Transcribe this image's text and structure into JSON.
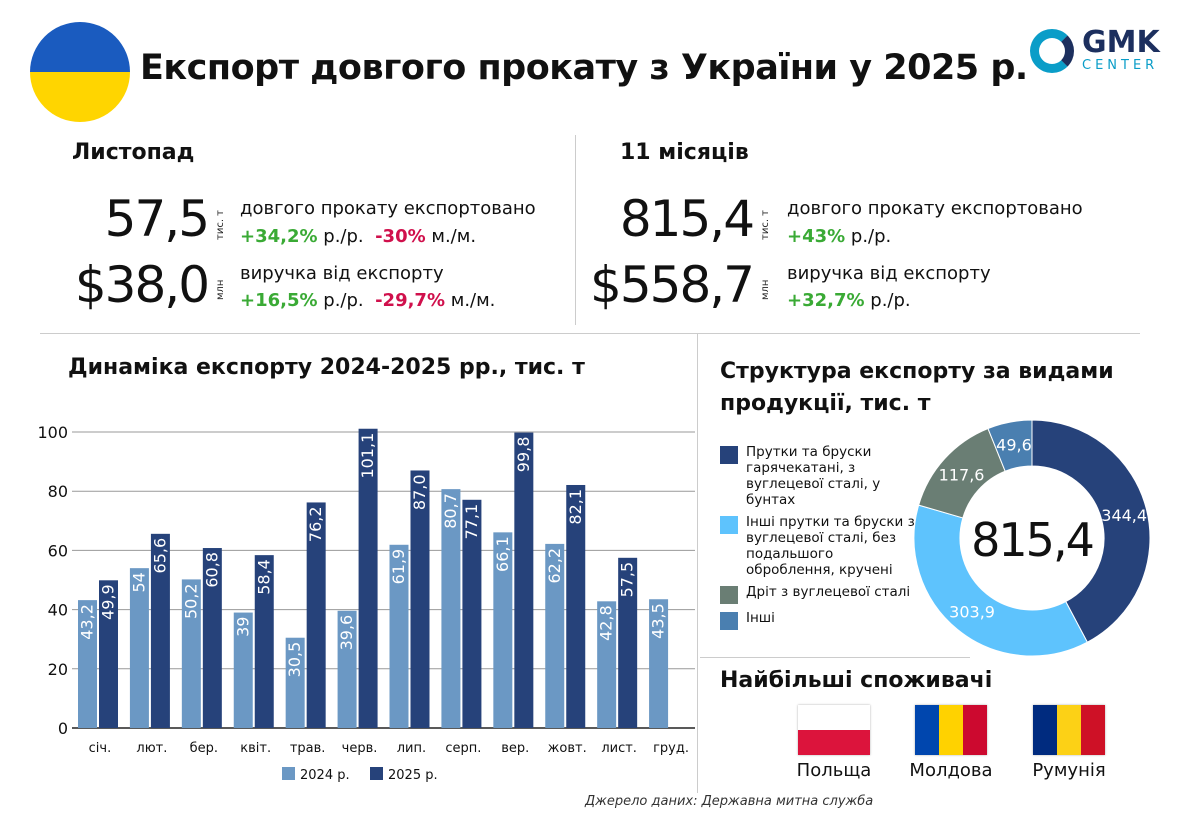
{
  "header": {
    "title": "Експорт довгого прокату з України у 2025 р.",
    "logo": {
      "text": "GMK",
      "subtext": "CENTER"
    },
    "flag_colors": [
      "#1a5bbf",
      "#ffd500"
    ],
    "accent": "#0a9dc8"
  },
  "november": {
    "heading": "Листопад",
    "volume": {
      "value": "57,5",
      "unit": "тис. т",
      "label": "довгого прокату експортовано",
      "yoy": "+34,2%",
      "yoy_suffix": "р./р.",
      "mom": "-30%",
      "mom_suffix": "м./м."
    },
    "revenue": {
      "value": "$38,0",
      "unit": "млн",
      "label": "виручка від експорту",
      "yoy": "+16,5%",
      "yoy_suffix": "р./р.",
      "mom": "-29,7%",
      "mom_suffix": "м./м."
    }
  },
  "eleven_months": {
    "heading": "11 місяців",
    "volume": {
      "value": "815,4",
      "unit": "тис. т",
      "label": "довгого прокату експортовано",
      "yoy": "+43%",
      "yoy_suffix": "р./р."
    },
    "revenue": {
      "value": "$558,7",
      "unit": "млн",
      "label": "виручка від експорту",
      "yoy": "+32,7%",
      "yoy_suffix": "р./р."
    }
  },
  "chart_data": [
    {
      "type": "bar",
      "title": "Динаміка експорту 2024-2025 рр., тис. т",
      "categories": [
        "січ.",
        "лют.",
        "бер.",
        "квіт.",
        "трав.",
        "черв.",
        "лип.",
        "серп.",
        "вер.",
        "жовт.",
        "лист.",
        "груд."
      ],
      "series": [
        {
          "name": "2024 р.",
          "color": "#6b98c4",
          "values": [
            43.2,
            54,
            50.2,
            39,
            30.5,
            39.6,
            61.9,
            80.7,
            66.1,
            62.2,
            42.8,
            43.5
          ],
          "labels": [
            "43,2",
            "54",
            "50,2",
            "39",
            "30,5",
            "39,6",
            "61,9",
            "80,7",
            "66,1",
            "62,2",
            "42,8",
            "43,5"
          ]
        },
        {
          "name": "2025 р.",
          "color": "#26427a",
          "values": [
            49.9,
            65.6,
            60.8,
            58.4,
            76.2,
            101.1,
            87.0,
            77.1,
            99.8,
            82.1,
            57.5,
            null
          ],
          "labels": [
            "49,9",
            "65,6",
            "60,8",
            "58,4",
            "76,2",
            "101,1",
            "87,0",
            "77,1",
            "99,8",
            "82,1",
            "57,5",
            null
          ]
        }
      ],
      "ylim": [
        0,
        100
      ],
      "yticks": [
        0,
        20,
        40,
        60,
        80,
        100
      ],
      "grid": true,
      "legend": "bottom"
    },
    {
      "type": "pie",
      "donut": true,
      "title": "Структура експорту за видами продукції, тис. т",
      "center_label": "815,4",
      "slices": [
        {
          "name": "Прутки та бруски гарячекатані, з вуглецевої сталі, у бунтах",
          "value": 344.4,
          "label": "344,4",
          "color": "#26427a"
        },
        {
          "name": "Інші прутки та бруски з вуглецевої сталі, без подальшого оброблення, кручені",
          "value": 303.9,
          "label": "303,9",
          "color": "#5ec3fd"
        },
        {
          "name": "Дріт з вуглецевої сталі",
          "value": 117.6,
          "label": "117,6",
          "color": "#6a7e74"
        },
        {
          "name": "Інші",
          "value": 49.6,
          "label": "49,6",
          "color": "#4a7fb0"
        }
      ],
      "legend": "left"
    }
  ],
  "consumers": {
    "heading": "Найбільші споживачі",
    "items": [
      {
        "name": "Польща",
        "flag": [
          "#ffffff",
          "#dc143c"
        ]
      },
      {
        "name": "Молдова",
        "flag": [
          "#0046ae",
          "#ffd200",
          "#cc092f"
        ]
      },
      {
        "name": "Румунія",
        "flag": [
          "#002b7f",
          "#fcd116",
          "#ce1126"
        ]
      }
    ]
  },
  "source": "Джерело даних: Державна митна служба"
}
